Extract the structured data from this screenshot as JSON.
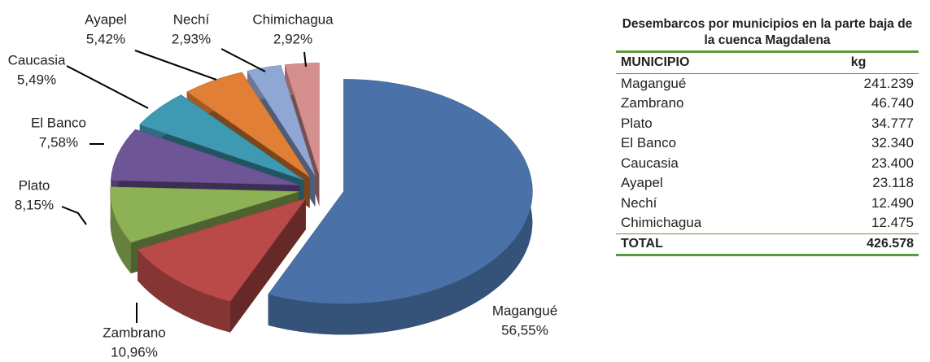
{
  "chart_data": {
    "type": "pie",
    "categories": [
      "Magangué",
      "Zambrano",
      "Plato",
      "El Banco",
      "Caucasia",
      "Ayapel",
      "Nechí",
      "Chimichagua"
    ],
    "values": [
      56.55,
      10.96,
      8.15,
      7.58,
      5.49,
      5.42,
      2.93,
      2.92
    ],
    "value_labels": [
      "56,55%",
      "10,96%",
      "8,15%",
      "7,58%",
      "5,49%",
      "5,42%",
      "2,93%",
      "2,92%"
    ],
    "colors": [
      "#4a72a8",
      "#b94a48",
      "#8db255",
      "#6e5596",
      "#3e9ab3",
      "#e07f35",
      "#8fa7d4",
      "#d58f8f"
    ]
  },
  "table": {
    "title": "Desembarcos  por municipios en la parte baja de la cuenca Magdalena",
    "header": [
      "MUNICIPIO",
      "kg"
    ],
    "rows": [
      [
        "Magangué",
        "241.239"
      ],
      [
        "Zambrano",
        "46.740"
      ],
      [
        "Plato",
        "34.777"
      ],
      [
        "El Banco",
        "32.340"
      ],
      [
        "Caucasia",
        "23.400"
      ],
      [
        "Ayapel",
        "23.118"
      ],
      [
        "Nechí",
        "12.490"
      ],
      [
        "Chimichagua",
        "12.475"
      ]
    ],
    "total": [
      "TOTAL",
      "426.578"
    ]
  }
}
